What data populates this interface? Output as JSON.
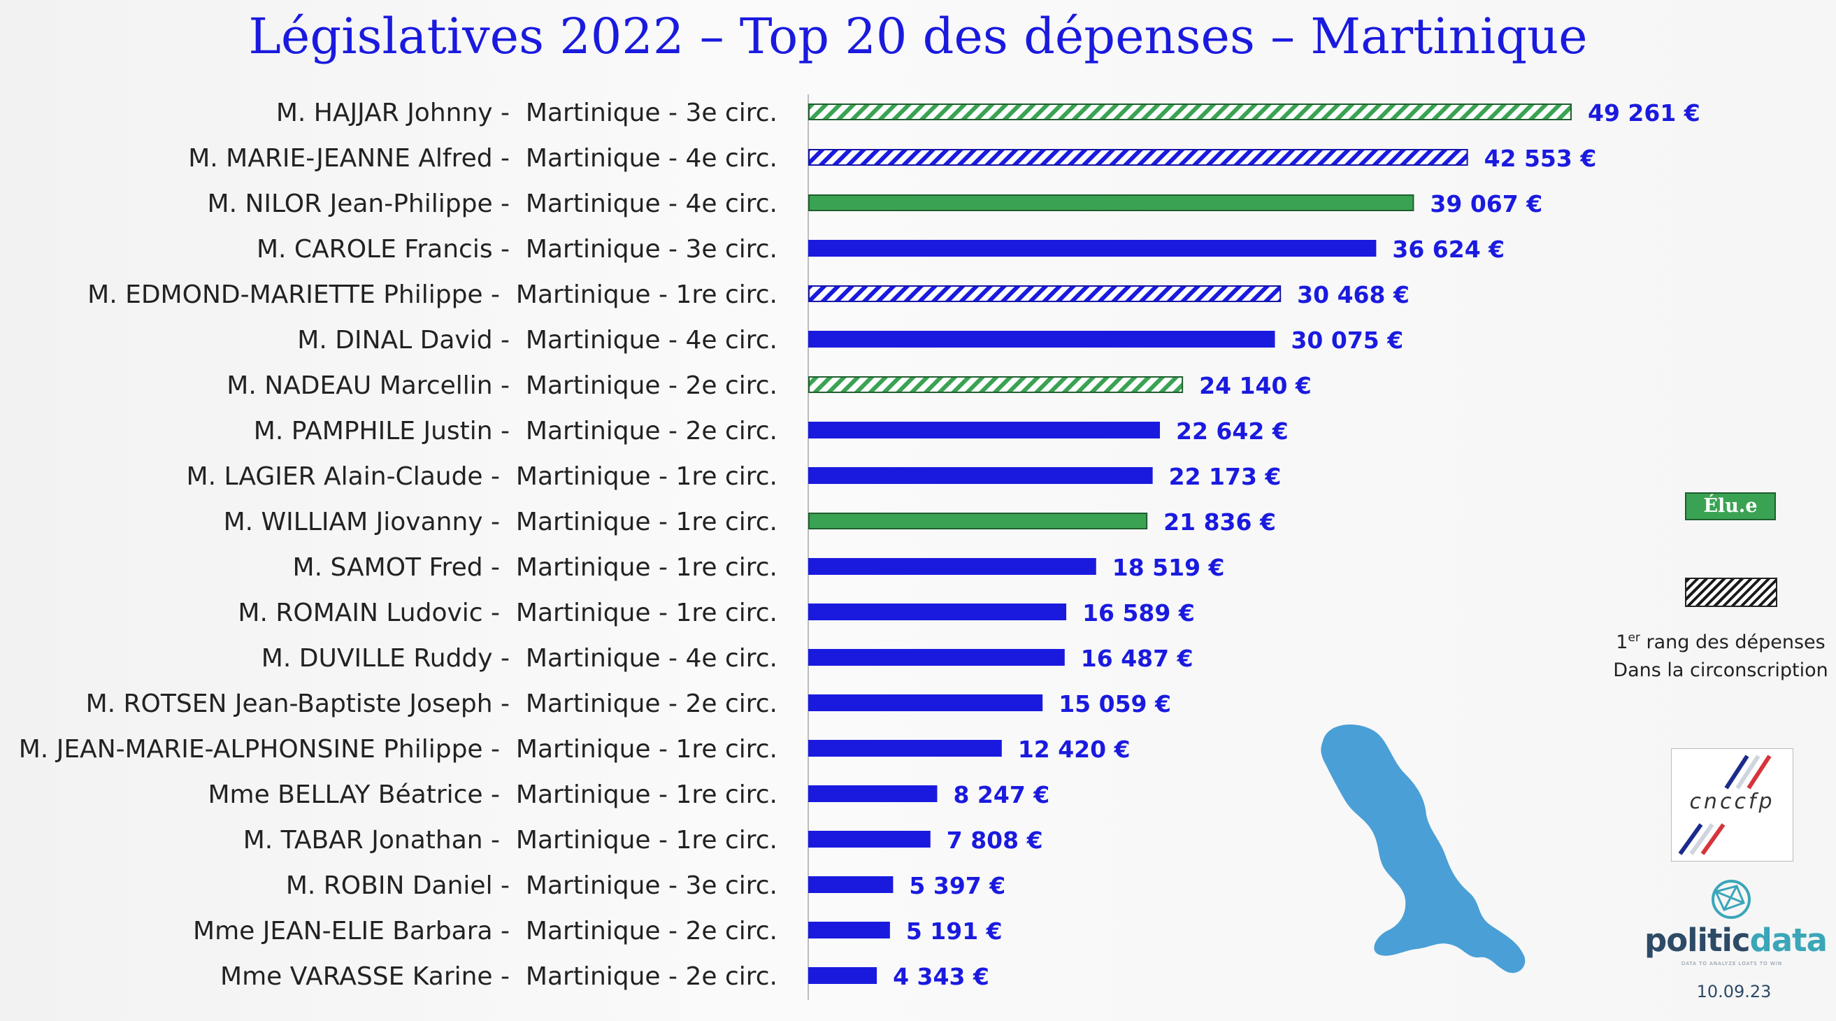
{
  "chart_data": {
    "type": "bar",
    "orientation": "horizontal",
    "title": "Législatives 2022 – Top 20 des dépenses – Martinique",
    "categories": [
      "M. HAJJAR Johnny -  Martinique - 3e circ.",
      "M. MARIE-JEANNE Alfred -  Martinique - 4e circ.",
      "M. NILOR Jean-Philippe -  Martinique - 4e circ.",
      "M. CAROLE Francis -  Martinique - 3e circ.",
      "M. EDMOND-MARIETTE Philippe -  Martinique - 1re circ.",
      "M. DINAL David -  Martinique - 4e circ.",
      "M. NADEAU Marcellin -  Martinique - 2e circ.",
      "M. PAMPHILE Justin -  Martinique - 2e circ.",
      "M. LAGIER Alain-Claude -  Martinique - 1re circ.",
      "M. WILLIAM Jiovanny -  Martinique - 1re circ.",
      "M. SAMOT Fred -  Martinique - 1re circ.",
      "M. ROMAIN Ludovic -  Martinique - 1re circ.",
      "M. DUVILLE Ruddy -  Martinique - 4e circ.",
      "M. ROTSEN Jean-Baptiste Joseph -  Martinique - 2e circ.",
      "M. JEAN-MARIE-ALPHONSINE Philippe -  Martinique - 1re circ.",
      "Mme BELLAY Béatrice -  Martinique - 1re circ.",
      "M. TABAR Jonathan -  Martinique - 1re circ.",
      "M. ROBIN Daniel -  Martinique - 3e circ.",
      "Mme JEAN-ELIE Barbara -  Martinique - 2e circ.",
      "Mme VARASSE Karine -  Martinique - 2e circ."
    ],
    "values": [
      49261,
      42553,
      39067,
      36624,
      30468,
      30075,
      24140,
      22642,
      22173,
      21836,
      18519,
      16589,
      16487,
      15059,
      12420,
      8247,
      7808,
      5397,
      5191,
      4343
    ],
    "value_labels": [
      "49 261 €",
      "42 553 €",
      "39 067 €",
      "36 624 €",
      "30 468 €",
      "30 075 €",
      "24 140 €",
      "22 642 €",
      "22 173 €",
      "21 836 €",
      "18 519 €",
      "16 589 €",
      "16 487 €",
      "15 059 €",
      "12 420 €",
      "8 247 €",
      "7 808 €",
      "5 397 €",
      "5 191 €",
      "4 343 €"
    ],
    "elected": [
      true,
      false,
      true,
      false,
      false,
      false,
      true,
      false,
      false,
      true,
      false,
      false,
      false,
      false,
      false,
      false,
      false,
      false,
      false,
      false
    ],
    "first_rank_in_constituency": [
      true,
      true,
      false,
      false,
      true,
      false,
      true,
      false,
      false,
      false,
      false,
      false,
      false,
      false,
      false,
      false,
      false,
      false,
      false,
      false
    ],
    "xlim": [
      0,
      52000
    ],
    "grid": false,
    "colors": {
      "default": "#1a1adf",
      "elected": "#3aa353",
      "elected_border": "#1f5e2e",
      "first_rank_hatch": "#1a1adf",
      "elected_first_rank_hatch": "#3aa353",
      "value_label": "#1a1adf",
      "title": "#1a1adf"
    }
  },
  "legend": {
    "elected_label": "Élu.e",
    "first_rank_sup": "er",
    "first_rank_line1_rest": " rang des dépenses",
    "first_rank_line2": "Dans la circonscription",
    "first_rank_ordinal": "1",
    "placement": "right"
  },
  "logos": {
    "cnccfp": "cnccfp",
    "politicdata_part1": "politic",
    "politicdata_part2": "data",
    "politicdata_tagline": "DATA TO ANALYZE LOATS TO WIN",
    "date": "10.09.23",
    "map_icon": "martinique-map-icon"
  }
}
